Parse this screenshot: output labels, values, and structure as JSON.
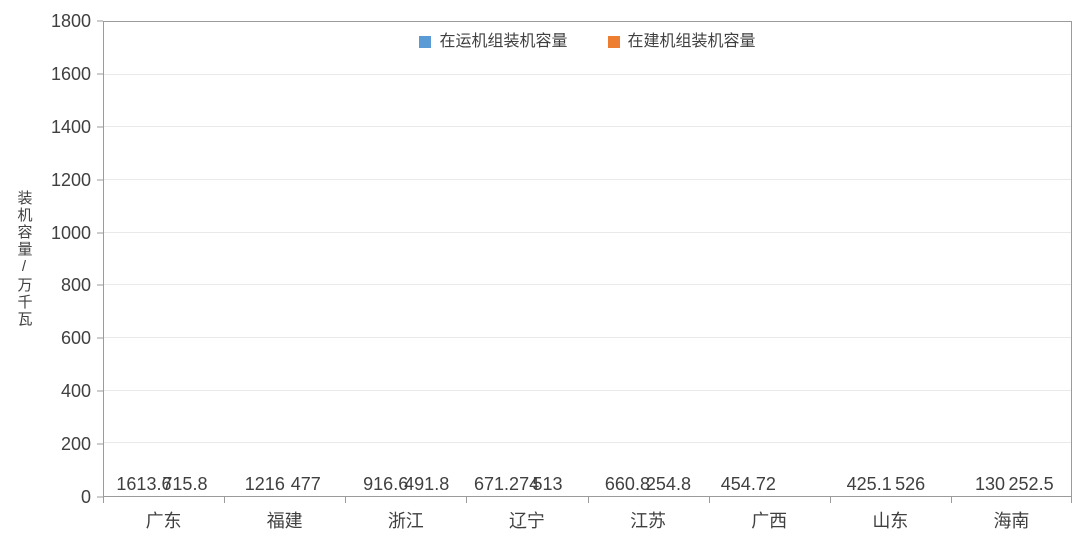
{
  "chart_data": {
    "type": "bar",
    "title": "",
    "categories": [
      "广东",
      "福建",
      "浙江",
      "辽宁",
      "江苏",
      "广西",
      "山东",
      "海南"
    ],
    "series": [
      {
        "name": "在运机组装机容量",
        "color": "#5B9BD5",
        "values": [
          1613.6,
          1216,
          916.6,
          671.274,
          660.8,
          454.72,
          425.1,
          130
        ]
      },
      {
        "name": "在建机组装机容量",
        "color": "#ED7D31",
        "values": [
          715.8,
          477,
          491.8,
          513,
          254.8,
          null,
          526,
          252.5
        ]
      }
    ],
    "xlabel": "",
    "ylabel": "装机容量/万千瓦",
    "ylim": [
      0,
      1800
    ],
    "ytick_step": 200,
    "ytick_labels": [
      "0",
      "200",
      "400",
      "600",
      "800",
      "1000",
      "1200",
      "1400",
      "1600",
      "1800"
    ],
    "grid": true,
    "legend_position": "top-center",
    "data_labels_shown": true
  },
  "style": {
    "series_colors": [
      "#5B9BD5",
      "#ED7D31"
    ],
    "grid_color": "#E9E9E9",
    "axis_color": "#9B9B9B",
    "text_color": "#404040",
    "background": "#FFFFFF"
  }
}
